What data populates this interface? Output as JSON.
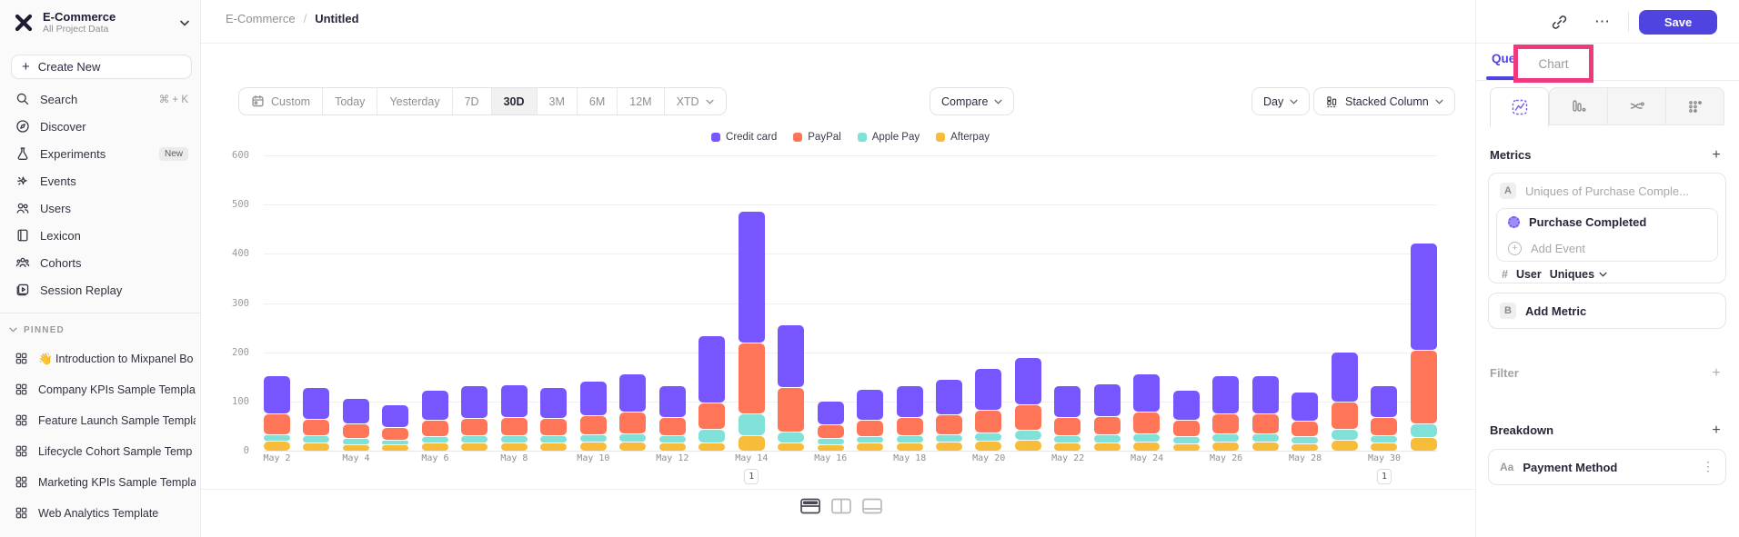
{
  "colors": {
    "accent": "#4F44E0",
    "annotation": "#F0397C"
  },
  "sidebar": {
    "project_name": "E-Commerce",
    "project_scope": "All Project Data",
    "create_new_label": "Create New",
    "items": [
      {
        "icon": "search",
        "label": "Search",
        "shortcut": "⌘ + K"
      },
      {
        "icon": "discover",
        "label": "Discover"
      },
      {
        "icon": "experiments",
        "label": "Experiments",
        "badge": "New"
      },
      {
        "icon": "events",
        "label": "Events"
      },
      {
        "icon": "users",
        "label": "Users"
      },
      {
        "icon": "lexicon",
        "label": "Lexicon"
      },
      {
        "icon": "cohorts",
        "label": "Cohorts"
      },
      {
        "icon": "session-replay",
        "label": "Session Replay"
      }
    ],
    "pinned_header": "PINNED",
    "pinned": [
      {
        "label": "👋 Introduction to Mixpanel Bo"
      },
      {
        "label": "Company KPIs Sample Templat"
      },
      {
        "label": "Feature Launch Sample Templa"
      },
      {
        "label": "Lifecycle Cohort Sample Temp"
      },
      {
        "label": "Marketing KPIs Sample Templat"
      },
      {
        "label": "Web Analytics Template"
      }
    ]
  },
  "header": {
    "breadcrumb_project": "E-Commerce",
    "breadcrumb_separator": "/",
    "breadcrumb_page": "Untitled",
    "more_glyph": "⋯",
    "save_label": "Save"
  },
  "toolbar": {
    "ranges": [
      "Custom",
      "Today",
      "Yesterday",
      "7D",
      "30D",
      "3M",
      "6M",
      "12M",
      "XTD"
    ],
    "active_range": "30D",
    "compare_label": "Compare",
    "granularity_label": "Day",
    "chart_type_label": "Stacked Column"
  },
  "panel": {
    "tab_query": "Query",
    "tab_chart": "Chart",
    "metrics_title": "Metrics",
    "metric_a_badge": "A",
    "metric_a_summary": "Uniques of Purchase Comple...",
    "metric_a_event": "Purchase Completed",
    "add_event_label": "Add Event",
    "measure_prefix": "#",
    "measure_entity": "User",
    "measure_type": "Uniques",
    "metric_b_badge": "B",
    "add_metric_label": "Add Metric",
    "filter_title": "Filter",
    "breakdown_title": "Breakdown",
    "breakdown_item_type": "Aa",
    "breakdown_item_label": "Payment Method",
    "breakdown_item_menu": "⋮"
  },
  "chart_data": {
    "type": "bar",
    "stacked": true,
    "title": "",
    "xlabel": "",
    "ylabel": "",
    "ylim": [
      0,
      600
    ],
    "yticks": [
      0,
      100,
      200,
      300,
      400,
      500,
      600
    ],
    "grid": "horizontal",
    "legend_position": "top",
    "x": [
      "May 2",
      "May 3",
      "May 4",
      "May 5",
      "May 6",
      "May 7",
      "May 8",
      "May 9",
      "May 10",
      "May 11",
      "May 12",
      "May 13",
      "May 14",
      "May 15",
      "May 16",
      "May 17",
      "May 18",
      "May 19",
      "May 20",
      "May 21",
      "May 22",
      "May 23",
      "May 24",
      "May 25",
      "May 26",
      "May 27",
      "May 28",
      "May 29",
      "May 30",
      "May 31"
    ],
    "x_tick_every": 2,
    "series": [
      {
        "name": "Credit card",
        "color": "#7856FF",
        "values": [
          75,
          62,
          50,
          44,
          58,
          64,
          65,
          61,
          68,
          76,
          63,
          135,
          265,
          127,
          47,
          60,
          63,
          71,
          82,
          93,
          63,
          66,
          76,
          59,
          74,
          74,
          57,
          100,
          63,
          215
        ]
      },
      {
        "name": "PayPal",
        "color": "#FF7557",
        "values": [
          40,
          33,
          28,
          24,
          32,
          34,
          35,
          33,
          37,
          41,
          34,
          53,
          143,
          88,
          26,
          32,
          34,
          38,
          44,
          50,
          34,
          35,
          41,
          32,
          40,
          40,
          31,
          53,
          34,
          148
        ]
      },
      {
        "name": "Apple Pay",
        "color": "#80E1D9",
        "values": [
          12,
          13,
          10,
          8,
          12,
          13,
          14,
          13,
          14,
          15,
          13,
          25,
          42,
          20,
          10,
          12,
          13,
          14,
          16,
          19,
          13,
          14,
          15,
          12,
          15,
          15,
          12,
          20,
          13,
          27
        ]
      },
      {
        "name": "Afterpay",
        "color": "#F8BC3B",
        "values": [
          18,
          14,
          12,
          11,
          14,
          14,
          14,
          15,
          16,
          17,
          15,
          15,
          30,
          15,
          12,
          14,
          15,
          16,
          18,
          20,
          15,
          15,
          17,
          13,
          16,
          16,
          13,
          21,
          15,
          25
        ]
      }
    ],
    "annotations": [
      {
        "x": "May 14",
        "label": "1"
      },
      {
        "x": "May 30",
        "label": "1"
      }
    ]
  }
}
